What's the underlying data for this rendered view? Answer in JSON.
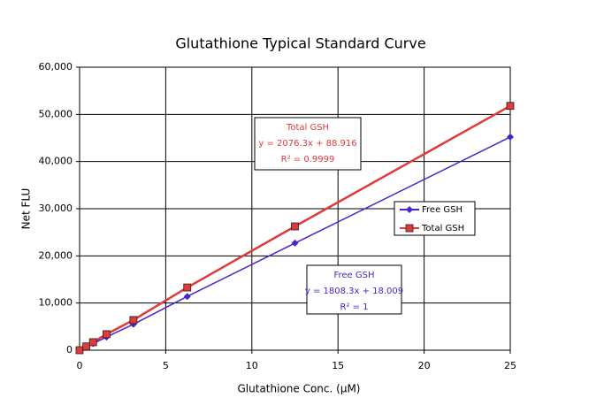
{
  "chart_data": {
    "type": "line",
    "title": "Glutathione Typical Standard Curve",
    "x_label": "Glutathione Conc. (µM)",
    "y_label": "Net FLU",
    "x": [
      0,
      0.390625,
      0.78125,
      1.5625,
      3.125,
      6.25,
      12.5,
      25
    ],
    "series": [
      {
        "name": "Free GSH",
        "color": "#4b22c8",
        "marker": "diamond",
        "values": [
          0,
          700,
          1400,
          2800,
          5500,
          11400,
          22700,
          45200
        ]
      },
      {
        "name": "Total GSH",
        "color": "#e03a3a",
        "marker": "square",
        "values": [
          0,
          800,
          1700,
          3400,
          6400,
          13300,
          26250,
          51800
        ]
      }
    ],
    "xlim": [
      0,
      25
    ],
    "xticks": [
      0,
      5,
      10,
      15,
      20,
      25
    ],
    "ylim": [
      0,
      60000
    ],
    "yticks": [
      0,
      {
        "value": 10000,
        "label": "10,000"
      },
      {
        "value": 20000,
        "label": "20,000"
      },
      {
        "value": 30000,
        "label": "30,000"
      },
      {
        "value": 40000,
        "label": "40,000"
      },
      {
        "value": 50000,
        "label": "50,000"
      },
      {
        "value": 60000,
        "label": "60,000"
      }
    ],
    "grid": true,
    "legend": "right",
    "annotations": [
      {
        "color": "#e03a3a",
        "lines": [
          "Total GSH",
          "y = 2076.3x + 88.916",
          "R² = 0.9999"
        ]
      },
      {
        "color": "#4b22c8",
        "lines": [
          "Free GSH",
          "y = 1808.3x + 18.009",
          "R² = 1"
        ]
      }
    ]
  }
}
